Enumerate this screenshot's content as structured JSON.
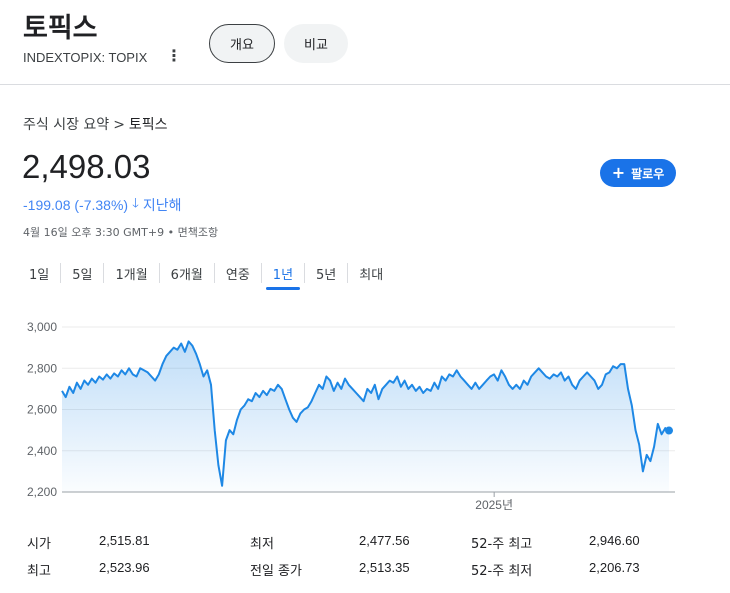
{
  "header": {
    "title": "토픽스",
    "ticker": "INDEXTOPIX: TOPIX",
    "tabs": [
      {
        "label": "개요",
        "active": true
      },
      {
        "label": "비교",
        "active": false
      }
    ]
  },
  "breadcrumb": {
    "parent": "주식 시장 요약",
    "separator": ">",
    "current": "토픽스"
  },
  "quote": {
    "price": "2,498.03",
    "change": "-199.08 (-7.38%)",
    "period": "지난해",
    "timestamp": "4월 16일 오후 3:30 GMT+9 • 면책조항"
  },
  "follow_button": {
    "label": "팔로우"
  },
  "ranges": [
    {
      "label": "1일",
      "active": false
    },
    {
      "label": "5일",
      "active": false
    },
    {
      "label": "1개월",
      "active": false
    },
    {
      "label": "6개월",
      "active": false
    },
    {
      "label": "연중",
      "active": false
    },
    {
      "label": "1년",
      "active": true
    },
    {
      "label": "5년",
      "active": false
    },
    {
      "label": "최대",
      "active": false
    }
  ],
  "chart_data": {
    "type": "area",
    "ylim": [
      2200,
      3000
    ],
    "y_ticks": [
      "3,000",
      "2,800",
      "2,600",
      "2,400",
      "2,200"
    ],
    "y_tick_values": [
      3000,
      2800,
      2600,
      2400,
      2200
    ],
    "x_tick_label": "2025년",
    "x_tick_fraction": 0.705,
    "line_color": "#1e88e5",
    "series": [
      {
        "values": [
          2690,
          2660,
          2710,
          2680,
          2730,
          2700,
          2740,
          2720,
          2750,
          2730,
          2760,
          2745,
          2770,
          2750,
          2775,
          2760,
          2790,
          2770,
          2800,
          2770,
          2760,
          2800,
          2790,
          2780,
          2760,
          2740,
          2770,
          2820,
          2860,
          2880,
          2900,
          2890,
          2920,
          2880,
          2930,
          2910,
          2870,
          2820,
          2760,
          2790,
          2720,
          2500,
          2330,
          2230,
          2450,
          2500,
          2480,
          2550,
          2600,
          2620,
          2650,
          2640,
          2680,
          2660,
          2690,
          2670,
          2700,
          2690,
          2720,
          2700,
          2650,
          2600,
          2560,
          2540,
          2580,
          2600,
          2610,
          2640,
          2680,
          2720,
          2700,
          2760,
          2740,
          2690,
          2730,
          2700,
          2750,
          2720,
          2700,
          2680,
          2660,
          2640,
          2700,
          2680,
          2720,
          2650,
          2700,
          2720,
          2740,
          2730,
          2760,
          2710,
          2740,
          2700,
          2720,
          2690,
          2710,
          2680,
          2700,
          2690,
          2730,
          2700,
          2760,
          2740,
          2770,
          2760,
          2790,
          2760,
          2740,
          2720,
          2700,
          2730,
          2700,
          2720,
          2740,
          2760,
          2770,
          2740,
          2790,
          2760,
          2720,
          2700,
          2720,
          2700,
          2740,
          2720,
          2760,
          2780,
          2800,
          2780,
          2760,
          2750,
          2770,
          2760,
          2780,
          2740,
          2760,
          2720,
          2700,
          2740,
          2760,
          2780,
          2760,
          2740,
          2700,
          2720,
          2770,
          2780,
          2810,
          2800,
          2820,
          2820,
          2700,
          2620,
          2500,
          2430,
          2300,
          2380,
          2350,
          2420,
          2530,
          2480,
          2510,
          2498
        ]
      }
    ]
  },
  "stats": [
    {
      "label": "시가",
      "value": "2,515.81"
    },
    {
      "label": "최저",
      "value": "2,477.56"
    },
    {
      "label": "52-주 최고",
      "value": "2,946.60"
    },
    {
      "label": "최고",
      "value": "2,523.96"
    },
    {
      "label": "전일 종가",
      "value": "2,513.35"
    },
    {
      "label": "52-주 최저",
      "value": "2,206.73"
    }
  ]
}
